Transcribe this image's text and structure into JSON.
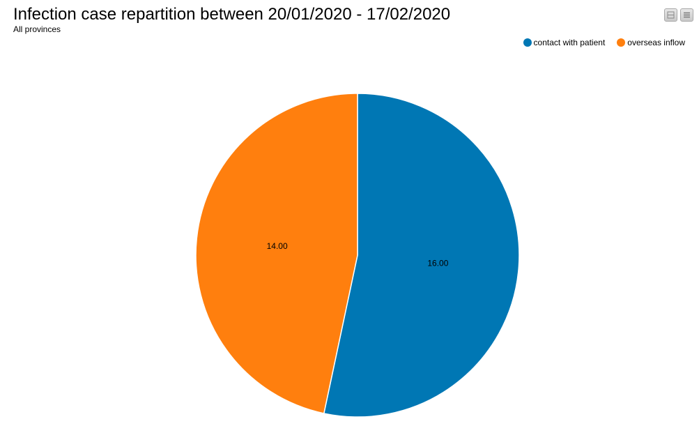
{
  "title": "Infection case repartition between 20/01/2020 - 17/02/2020",
  "subtitle": "All provinces",
  "toolbar": {
    "buttons": [
      {
        "icon": "collapse-icon"
      },
      {
        "icon": "menu-icon"
      }
    ]
  },
  "chart_data": {
    "type": "pie",
    "title": "Infection case repartition between 20/01/2020 - 17/02/2020",
    "subtitle": "All provinces",
    "legend_position": "top-right",
    "start_angle": "12 o'clock, clockwise",
    "slices": [
      {
        "name": "contact with patient",
        "value": 16.0,
        "label": "16.00",
        "color": "#0077b4"
      },
      {
        "name": "overseas inflow",
        "value": 14.0,
        "label": "14.00",
        "color": "#ff7f0e"
      }
    ]
  }
}
